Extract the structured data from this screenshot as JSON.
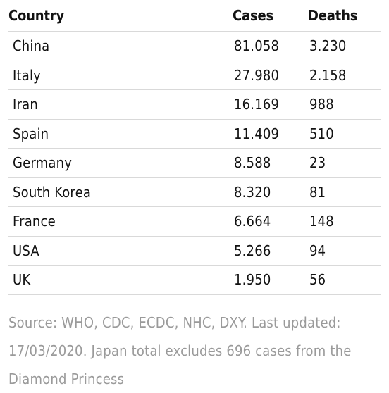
{
  "chart_data": {
    "type": "table",
    "columns": [
      "Country",
      "Cases",
      "Deaths"
    ],
    "rows": [
      {
        "country": "China",
        "cases": "81.058",
        "deaths": "3.230"
      },
      {
        "country": "Italy",
        "cases": "27.980",
        "deaths": "2.158"
      },
      {
        "country": "Iran",
        "cases": "16.169",
        "deaths": "988"
      },
      {
        "country": "Spain",
        "cases": "11.409",
        "deaths": "510"
      },
      {
        "country": "Germany",
        "cases": "8.588",
        "deaths": "23"
      },
      {
        "country": "South Korea",
        "cases": "8.320",
        "deaths": "81"
      },
      {
        "country": "France",
        "cases": "6.664",
        "deaths": "148"
      },
      {
        "country": "USA",
        "cases": "5.266",
        "deaths": "94"
      },
      {
        "country": "UK",
        "cases": "1.950",
        "deaths": "56"
      }
    ],
    "source_note": "Source: WHO, CDC, ECDC, NHC, DXY. Last updated: 17/03/2020. Japan total excludes 696 cases from the Diamond Princess"
  },
  "colors": {
    "text": "#121212",
    "muted": "#9a9a9a",
    "rule": "#d9d9d9"
  }
}
